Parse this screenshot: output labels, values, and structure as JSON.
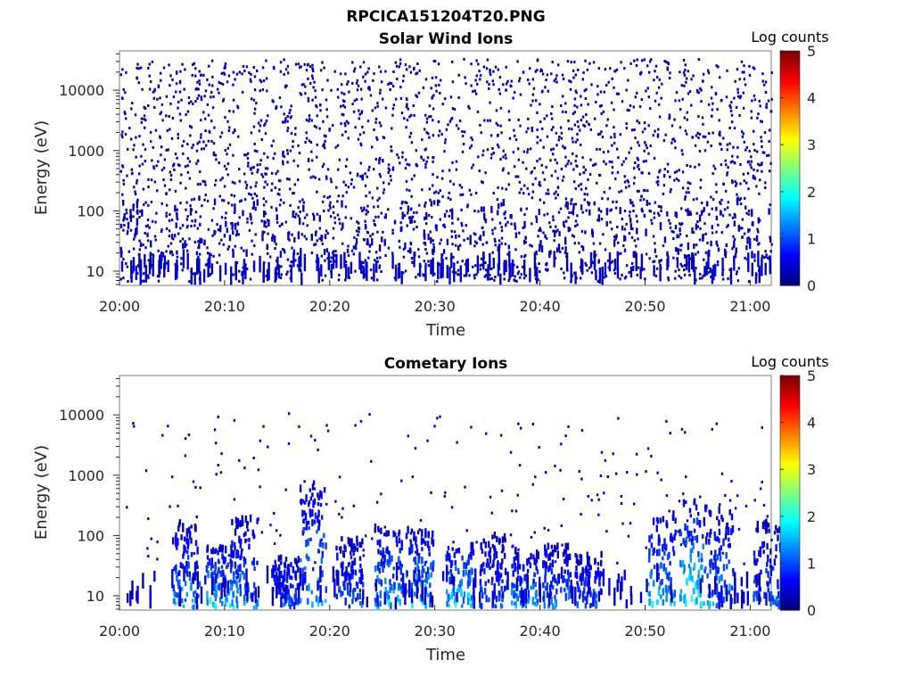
{
  "figure_title": "RPCICA151204T20.PNG",
  "chart_data": [
    {
      "type": "heatmap",
      "title": "Solar Wind Ions",
      "xlabel": "Time",
      "ylabel": "Energy (eV)",
      "yscale": "log",
      "ylim": [
        5.8,
        45000
      ],
      "xlim": [
        "20:00",
        "21:02"
      ],
      "xticks": [
        "20:00",
        "20:10",
        "20:20",
        "20:30",
        "20:40",
        "20:50",
        "21:00"
      ],
      "yticks": [
        10,
        100,
        1000,
        10000
      ],
      "ytick_labels": [
        "10",
        "100",
        "1000",
        "10000"
      ],
      "colorbar": {
        "label": "Log counts",
        "range": [
          0,
          5
        ],
        "ticks": [
          "0",
          "1",
          "2",
          "3",
          "4",
          "5"
        ],
        "colormap": "jet"
      },
      "description": "sparse scattered single-count pixels across all energies, denser streaks below 30 eV"
    },
    {
      "type": "heatmap",
      "title": "Cometary Ions",
      "xlabel": "Time",
      "ylabel": "Energy (eV)",
      "yscale": "log",
      "ylim": [
        5.8,
        45000
      ],
      "xlim": [
        "20:00",
        "21:02"
      ],
      "xticks": [
        "20:00",
        "20:10",
        "20:20",
        "20:30",
        "20:40",
        "20:50",
        "21:00"
      ],
      "yticks": [
        10,
        100,
        1000,
        10000
      ],
      "ytick_labels": [
        "10",
        "100",
        "1000",
        "10000"
      ],
      "colorbar": {
        "label": "Log counts",
        "range": [
          0,
          5
        ],
        "ticks": [
          "0",
          "1",
          "2",
          "3",
          "4",
          "5"
        ],
        "colormap": "jet"
      },
      "bursts": [
        {
          "time": "20:06.3",
          "emax": 150,
          "peak": 1.6
        },
        {
          "time": "20:09.5",
          "emax": 60,
          "peak": 2.0
        },
        {
          "time": "20:11.8",
          "emax": 180,
          "peak": 1.5
        },
        {
          "time": "20:15.7",
          "emax": 40,
          "peak": 1.3
        },
        {
          "time": "20:18.3",
          "emax": 700,
          "peak": 1.8
        },
        {
          "time": "20:21.8",
          "emax": 80,
          "peak": 1.3
        },
        {
          "time": "20:25.5",
          "emax": 120,
          "peak": 1.8
        },
        {
          "time": "20:28.5",
          "emax": 120,
          "peak": 1.9
        },
        {
          "time": "20:32.3",
          "emax": 60,
          "peak": 2.1
        },
        {
          "time": "20:35.5",
          "emax": 90,
          "peak": 1.2
        },
        {
          "time": "20:38.5",
          "emax": 50,
          "peak": 1.6
        },
        {
          "time": "20:41.5",
          "emax": 60,
          "peak": 1.5
        },
        {
          "time": "20:44.5",
          "emax": 45,
          "peak": 1.3
        },
        {
          "time": "20:51.5",
          "emax": 200,
          "peak": 1.8
        },
        {
          "time": "20:54.5",
          "emax": 350,
          "peak": 2.2
        },
        {
          "time": "20:57.0",
          "emax": 250,
          "peak": 1.6
        },
        {
          "time": "21:01.5",
          "emax": 150,
          "peak": 1.3
        }
      ]
    }
  ]
}
